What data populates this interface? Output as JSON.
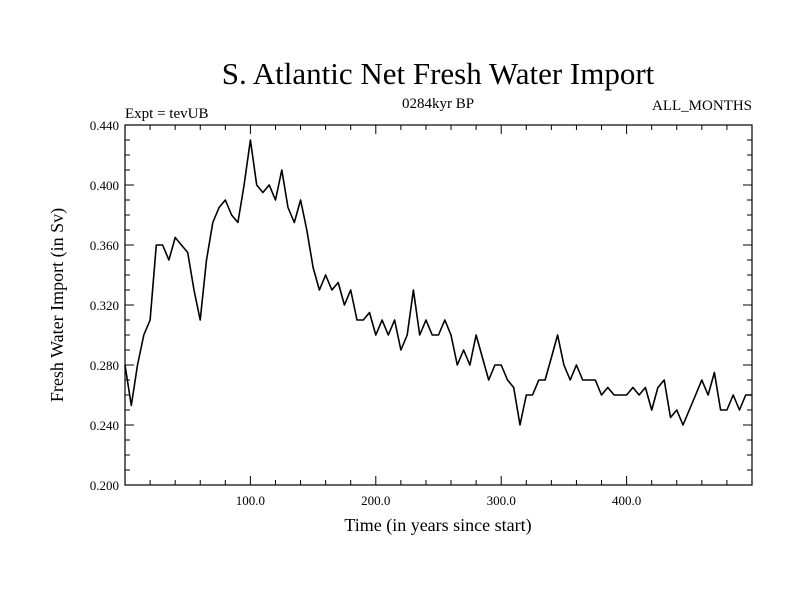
{
  "chart_data": {
    "type": "line",
    "title": "S. Atlantic Net Fresh Water Import",
    "subtitle_left": "Expt = tevUB",
    "subtitle_center": "0284kyr BP",
    "subtitle_right": "ALL_MONTHS",
    "xlabel": "Time (in years since start)",
    "ylabel": "Fresh Water Import (in Sv)",
    "xlim": [
      0,
      500
    ],
    "ylim": [
      0.2,
      0.44
    ],
    "xticks": [
      100,
      200,
      300,
      400
    ],
    "xtick_labels": [
      "100.0",
      "200.0",
      "300.0",
      "400.0"
    ],
    "yticks": [
      0.2,
      0.24,
      0.28,
      0.32,
      0.36,
      0.4,
      0.44
    ],
    "ytick_labels": [
      "0.200",
      "0.240",
      "0.280",
      "0.320",
      "0.360",
      "0.400",
      "0.440"
    ],
    "grid": false,
    "legend": "none",
    "line_color": "#000000",
    "series": [
      {
        "x": [
          0,
          5,
          10,
          15,
          20,
          25,
          30,
          35,
          40,
          45,
          50,
          55,
          60,
          65,
          70,
          75,
          80,
          85,
          90,
          95,
          100,
          105,
          110,
          115,
          120,
          125,
          130,
          135,
          140,
          145,
          150,
          155,
          160,
          165,
          170,
          175,
          180,
          185,
          190,
          195,
          200,
          205,
          210,
          215,
          220,
          225,
          230,
          235,
          240,
          245,
          250,
          255,
          260,
          265,
          270,
          275,
          280,
          285,
          290,
          295,
          300,
          305,
          310,
          315,
          320,
          325,
          330,
          335,
          340,
          345,
          350,
          355,
          360,
          365,
          370,
          375,
          380,
          385,
          390,
          395,
          400,
          405,
          410,
          415,
          420,
          425,
          430,
          435,
          440,
          445,
          450,
          455,
          460,
          465,
          470,
          475,
          480,
          485,
          490,
          495,
          500
        ],
        "y": [
          0.28,
          0.253,
          0.28,
          0.3,
          0.31,
          0.36,
          0.36,
          0.35,
          0.365,
          0.36,
          0.355,
          0.33,
          0.31,
          0.35,
          0.375,
          0.385,
          0.39,
          0.38,
          0.375,
          0.4,
          0.43,
          0.4,
          0.395,
          0.4,
          0.39,
          0.41,
          0.385,
          0.375,
          0.39,
          0.37,
          0.345,
          0.33,
          0.34,
          0.33,
          0.335,
          0.32,
          0.33,
          0.31,
          0.31,
          0.315,
          0.3,
          0.31,
          0.3,
          0.31,
          0.29,
          0.3,
          0.33,
          0.3,
          0.31,
          0.3,
          0.3,
          0.31,
          0.3,
          0.28,
          0.29,
          0.28,
          0.3,
          0.285,
          0.27,
          0.28,
          0.28,
          0.27,
          0.265,
          0.24,
          0.26,
          0.26,
          0.27,
          0.27,
          0.285,
          0.3,
          0.28,
          0.27,
          0.28,
          0.27,
          0.27,
          0.27,
          0.26,
          0.265,
          0.26,
          0.26,
          0.26,
          0.265,
          0.26,
          0.265,
          0.25,
          0.265,
          0.27,
          0.245,
          0.25,
          0.24,
          0.25,
          0.26,
          0.27,
          0.26,
          0.275,
          0.25,
          0.25,
          0.26,
          0.25,
          0.26,
          0.26
        ]
      }
    ]
  }
}
